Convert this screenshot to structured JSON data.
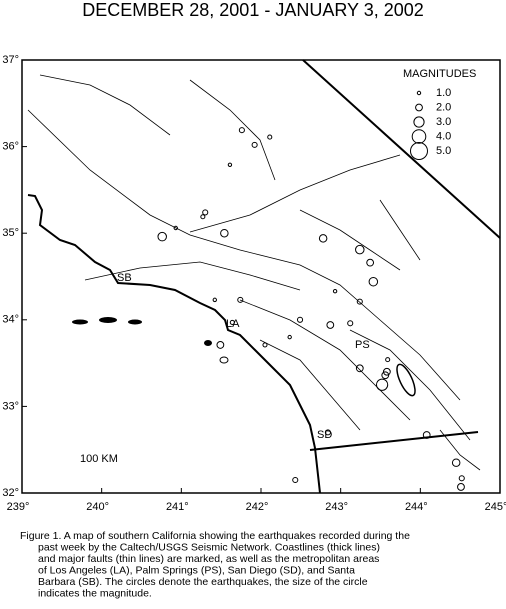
{
  "title": "DECEMBER 28, 2001 - JANUARY 3, 2002",
  "map": {
    "xlim": [
      239,
      245
    ],
    "ylim": [
      32,
      37
    ],
    "xticks": [
      {
        "value": 239,
        "label": "239°"
      },
      {
        "value": 240,
        "label": "240°"
      },
      {
        "value": 241,
        "label": "241°"
      },
      {
        "value": 242,
        "label": "242°"
      },
      {
        "value": 243,
        "label": "243°"
      },
      {
        "value": 244,
        "label": "244°"
      },
      {
        "value": 245,
        "label": "245°"
      }
    ],
    "yticks": [
      {
        "value": 32,
        "label": "32°"
      },
      {
        "value": 33,
        "label": "33°"
      },
      {
        "value": 34,
        "label": "34°"
      },
      {
        "value": 35,
        "label": "35°"
      },
      {
        "value": 36,
        "label": "36°"
      },
      {
        "value": 37,
        "label": "37°"
      }
    ],
    "legend_title": "MAGNITUDES",
    "legend": [
      {
        "value": 1,
        "label": "1.0"
      },
      {
        "value": 2,
        "label": "2.0"
      },
      {
        "value": 3,
        "label": "3.0"
      },
      {
        "value": 4,
        "label": "4.0"
      },
      {
        "value": 5,
        "label": "5.0"
      }
    ],
    "places": [
      "SB",
      "LA",
      "PS",
      "SD"
    ],
    "scale_label": "100 KM",
    "quakes": {
      "lon": [
        240.76,
        241.54,
        241.3,
        241.27,
        240.93,
        242.78,
        243.24,
        243.37,
        243.41,
        241.76,
        241.92,
        241.61,
        242.11,
        241.42,
        241.74,
        242.49,
        242.87,
        243.12,
        243.24,
        242.93,
        241.49,
        241.64,
        242.05,
        242.36,
        243.24,
        243.59,
        243.56,
        243.52,
        243.58,
        242.43,
        242.84,
        244.08,
        244.45,
        244.51,
        244.52
      ],
      "lat": [
        34.96,
        35.0,
        35.24,
        35.19,
        35.06,
        34.94,
        34.81,
        34.66,
        34.44,
        36.19,
        36.02,
        35.79,
        36.11,
        34.23,
        34.23,
        34.0,
        33.94,
        33.96,
        34.21,
        34.33,
        33.71,
        33.97,
        33.71,
        33.8,
        33.44,
        33.54,
        33.36,
        33.25,
        33.4,
        32.15,
        32.7,
        32.67,
        32.35,
        32.07,
        32.17
      ],
      "mag": [
        2.5,
        2.2,
        1.5,
        1.2,
        1.0,
        2.2,
        2.5,
        2.0,
        2.5,
        1.5,
        1.5,
        1.0,
        1.2,
        1.0,
        1.5,
        1.5,
        2.0,
        1.5,
        1.5,
        1.0,
        2.0,
        1.2,
        1.2,
        1.0,
        2.0,
        1.2,
        2.0,
        3.3,
        2.0,
        1.5,
        1.5,
        2.0,
        2.2,
        2.0,
        1.5
      ]
    }
  },
  "caption": [
    "Figure 1. A map of southern California showing the earthquakes recorded during the",
    "past week by the Caltech/USGS Seismic Network.  Coastlines (thick lines)",
    "and major faults (thin lines) are marked, as well as the metropolitan areas",
    "of Los Angeles (LA), Palm Springs (PS), San Diego (SD), and Santa",
    "Barbara (SB).  The circles denote the earthquakes, the size of the circle",
    "indicates the magnitude."
  ]
}
